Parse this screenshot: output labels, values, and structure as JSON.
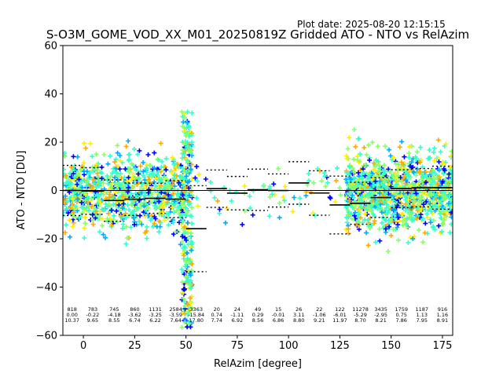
{
  "plot_date": "Plot date: 2025-08-20 12:15:15",
  "chart_data": {
    "type": "scatter",
    "title": "S-O3M_GOME_VOD_XX_M01_20250819Z Gridded ATO - NTO vs RelAzim",
    "xlabel": "RelAzim [degree]",
    "ylabel": "ATO - NTO [DU]",
    "xlim": [
      -10,
      180
    ],
    "ylim": [
      -60,
      60
    ],
    "xticks": [
      0,
      25,
      50,
      75,
      100,
      125,
      150,
      175
    ],
    "yticks": [
      -60,
      -40,
      -20,
      0,
      20,
      40,
      60
    ],
    "grid": false,
    "colors": {
      "low_density": "#0000ff",
      "mid_low": "#00aaff",
      "mid": "#33ffcc",
      "mid_high": "#88ff66",
      "high": "#ffee00",
      "highest": "#ffaa00",
      "mean_line": "#000000",
      "reference_line": "#000000"
    },
    "bins": [
      {
        "x_start": -10,
        "x_end": -1,
        "count": "818",
        "mean": "0.00",
        "std": "10.37"
      },
      {
        "x_start": -1,
        "x_end": 10,
        "count": "783",
        "mean": "-0.22",
        "std": "9.65"
      },
      {
        "x_start": 10,
        "x_end": 20,
        "count": "745",
        "mean": "-4.18",
        "std": "8.55"
      },
      {
        "x_start": 20,
        "x_end": 30,
        "count": "860",
        "mean": "-3.62",
        "std": "6.74"
      },
      {
        "x_start": 30,
        "x_end": 40,
        "count": "1131",
        "mean": "-3.25",
        "std": "6.22"
      },
      {
        "x_start": 40,
        "x_end": 50,
        "count": "2584",
        "mean": "-3.59",
        "std": "7.64"
      },
      {
        "x_start": 50,
        "x_end": 60,
        "count": "3363",
        "mean": "-15.84",
        "std": "17.80"
      },
      {
        "x_start": 60,
        "x_end": 70,
        "count": "20",
        "mean": "0.74",
        "std": "7.74"
      },
      {
        "x_start": 70,
        "x_end": 80,
        "count": "24",
        "mean": "-1.11",
        "std": "6.92"
      },
      {
        "x_start": 80,
        "x_end": 90,
        "count": "49",
        "mean": "0.29",
        "std": "8.56"
      },
      {
        "x_start": 90,
        "x_end": 100,
        "count": "15",
        "mean": "-0.01",
        "std": "6.86"
      },
      {
        "x_start": 100,
        "x_end": 110,
        "count": "26",
        "mean": "3.11",
        "std": "8.80"
      },
      {
        "x_start": 110,
        "x_end": 120,
        "count": "22",
        "mean": "-1.06",
        "std": "9.21"
      },
      {
        "x_start": 120,
        "x_end": 130,
        "count": "122",
        "mean": "-6.01",
        "std": "11.97"
      },
      {
        "x_start": 130,
        "x_end": 140,
        "count": "11278",
        "mean": "-5.29",
        "std": "8.70"
      },
      {
        "x_start": 140,
        "x_end": 150,
        "count": "3435",
        "mean": "-2.95",
        "std": "8.21"
      },
      {
        "x_start": 150,
        "x_end": 160,
        "count": "1759",
        "mean": "0.75",
        "std": "7.86"
      },
      {
        "x_start": 160,
        "x_end": 170,
        "count": "1187",
        "mean": "1.13",
        "std": "7.95"
      },
      {
        "x_start": 170,
        "x_end": 180,
        "count": "916",
        "mean": "1.16",
        "std": "8.91"
      }
    ],
    "clusters": [
      {
        "x_start": -10,
        "x_end": 50,
        "y_center": -1,
        "y_spread": 14,
        "density": 900
      },
      {
        "x_start": 48,
        "x_end": 53,
        "y_center": -12,
        "y_spread": 28,
        "density": 260
      },
      {
        "x_start": 53,
        "x_end": 128,
        "y_center": 0,
        "y_spread": 10,
        "density": 70
      },
      {
        "x_start": 128,
        "x_end": 180,
        "y_center": -1,
        "y_spread": 14,
        "density": 1100
      }
    ]
  }
}
